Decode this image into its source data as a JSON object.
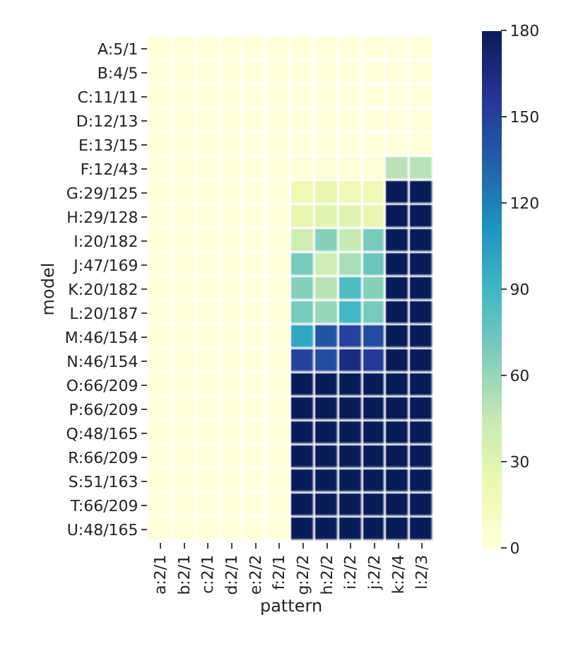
{
  "chart_data": {
    "type": "heatmap",
    "xlabel": "pattern",
    "ylabel": "model",
    "categories": [
      "a:2/1",
      "b:2/1",
      "c:2/1",
      "d:2/1",
      "e:2/2",
      "f:2/1",
      "g:2/2",
      "h:2/2",
      "i:2/2",
      "j:2/2",
      "k:2/4",
      "l:2/3"
    ],
    "y_categories": [
      "A:5/1",
      "B:4/5",
      "C:11/11",
      "D:12/13",
      "E:13/15",
      "F:12/43",
      "G:29/125",
      "H:29/128",
      "I:20/182",
      "J:47/169",
      "K:20/182",
      "L:20/187",
      "M:46/154",
      "N:46/154",
      "O:66/209",
      "P:66/209",
      "Q:48/165",
      "R:66/209",
      "S:51/163",
      "T:66/209",
      "U:48/165"
    ],
    "cells": [
      [
        0,
        0,
        0,
        0,
        0,
        0,
        0,
        0,
        0,
        0,
        0,
        0
      ],
      [
        0,
        0,
        0,
        0,
        0,
        0,
        0,
        0,
        0,
        0,
        0,
        0
      ],
      [
        0,
        0,
        0,
        0,
        0,
        0,
        0,
        0,
        0,
        0,
        0,
        0
      ],
      [
        0,
        0,
        0,
        0,
        0,
        0,
        0,
        0,
        0,
        0,
        0,
        0
      ],
      [
        0,
        0,
        0,
        0,
        0,
        0,
        0,
        0,
        0,
        0,
        0,
        0
      ],
      [
        0,
        0,
        0,
        0,
        0,
        0,
        2,
        2,
        2,
        2,
        50,
        50
      ],
      [
        0,
        0,
        0,
        0,
        0,
        0,
        20,
        25,
        20,
        20,
        180,
        180
      ],
      [
        0,
        0,
        0,
        0,
        0,
        0,
        25,
        30,
        30,
        25,
        180,
        180
      ],
      [
        0,
        0,
        0,
        0,
        0,
        0,
        40,
        65,
        45,
        70,
        180,
        180
      ],
      [
        0,
        0,
        0,
        0,
        0,
        0,
        70,
        40,
        55,
        75,
        180,
        180
      ],
      [
        0,
        0,
        0,
        0,
        0,
        0,
        65,
        50,
        85,
        65,
        180,
        180
      ],
      [
        0,
        0,
        0,
        0,
        0,
        0,
        70,
        60,
        90,
        70,
        180,
        180
      ],
      [
        0,
        0,
        0,
        0,
        0,
        0,
        100,
        140,
        150,
        145,
        180,
        180
      ],
      [
        0,
        0,
        0,
        0,
        0,
        0,
        150,
        145,
        165,
        155,
        180,
        180
      ],
      [
        0,
        0,
        0,
        0,
        0,
        0,
        180,
        180,
        180,
        180,
        180,
        180
      ],
      [
        0,
        0,
        0,
        0,
        0,
        0,
        180,
        180,
        180,
        180,
        180,
        180
      ],
      [
        0,
        0,
        0,
        0,
        0,
        0,
        180,
        180,
        180,
        180,
        180,
        180
      ],
      [
        0,
        0,
        0,
        0,
        0,
        0,
        180,
        180,
        180,
        180,
        180,
        180
      ],
      [
        0,
        0,
        0,
        0,
        0,
        0,
        180,
        180,
        180,
        180,
        180,
        180
      ],
      [
        0,
        0,
        0,
        0,
        0,
        0,
        180,
        180,
        180,
        180,
        180,
        180
      ],
      [
        0,
        0,
        0,
        0,
        0,
        0,
        180,
        180,
        180,
        180,
        180,
        180
      ]
    ],
    "clim": [
      0,
      180
    ],
    "cticks": [
      0,
      30,
      60,
      90,
      120,
      150,
      180
    ]
  }
}
